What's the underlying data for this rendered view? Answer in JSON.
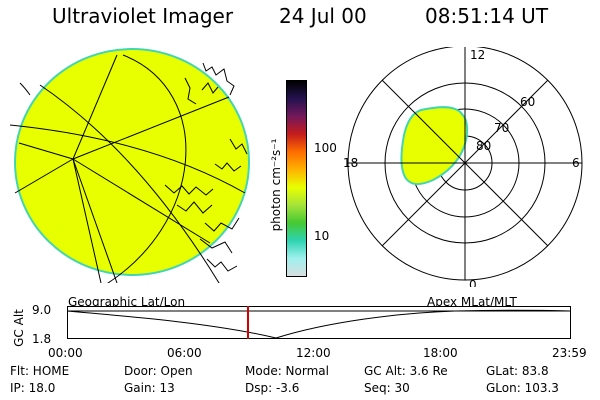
{
  "header": {
    "title": "Ultraviolet Imager",
    "date": "24 Jul 00",
    "time": "08:51:14 UT"
  },
  "colorbar": {
    "label": "photon cm⁻²s⁻¹",
    "ticks": [
      "100",
      "10"
    ],
    "colors": [
      "#000000",
      "#24124f",
      "#73185a",
      "#c51c1c",
      "#ff6d00",
      "#ffb200",
      "#e8ff00",
      "#a6e33a",
      "#46c832",
      "#2ed3b2",
      "#9ff0ee",
      "#d7dfdf"
    ],
    "scale": "log"
  },
  "geo_map": {
    "caption": "Geographic Lat/Lon",
    "fill_color": "#e8ff00",
    "edge_color": "#41d6b1"
  },
  "polar_plot": {
    "caption": "Apex MLat/MLT",
    "mlt_labels": {
      "top": "12",
      "left": "18",
      "right": "6",
      "bottom": "0"
    },
    "lat_labels": [
      "80",
      "70",
      "60"
    ],
    "fill_color": "#e8ff00",
    "edge_color": "#41d6b1"
  },
  "altitude_panel": {
    "ylabel": "GC Alt",
    "yticks": [
      "9.0",
      "1.8"
    ],
    "xticks": [
      "00:00",
      "06:00",
      "12:00",
      "18:00",
      "23:59"
    ],
    "marker_color": "#d40000",
    "marker_time": "08:51"
  },
  "info": {
    "flt": "Flt: HOME",
    "ip": "IP: 18.0",
    "door": "Door: Open",
    "gain": "Gain: 13",
    "mode": "Mode: Normal",
    "dsp": "Dsp:  -3.6",
    "gc_alt": "GC Alt: 3.6 Re",
    "seq": "Seq: 30",
    "glat": "GLat: 83.8",
    "glon": "GLon: 103.3"
  }
}
